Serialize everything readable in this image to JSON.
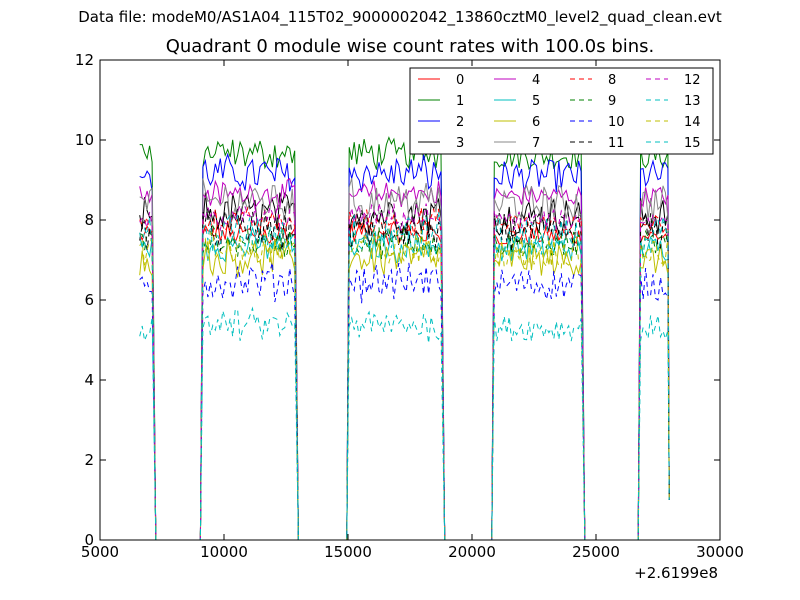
{
  "header": {
    "file_label": "Data file: modeM0/AS1A04_115T02_9000002042_13860cztM0_level2_quad_clean.evt"
  },
  "chart_data": {
    "type": "line",
    "title": "Quadrant 0 module wise count rates with 100.0s bins.",
    "xlabel": "",
    "ylabel": "",
    "x_offset_label": "+2.6199e8",
    "xlim": [
      5000,
      30000
    ],
    "ylim": [
      0,
      12
    ],
    "x_ticks": [
      5000,
      10000,
      15000,
      20000,
      25000,
      30000
    ],
    "x_tick_labels": [
      "5000",
      "10000",
      "15000",
      "20000",
      "25000",
      "30000"
    ],
    "y_ticks": [
      0,
      2,
      4,
      6,
      8,
      10,
      12
    ],
    "y_tick_labels": [
      "0",
      "2",
      "4",
      "6",
      "8",
      "10",
      "12"
    ],
    "legend_position": "top-right",
    "segments": [
      {
        "start": 6600,
        "end": 7100,
        "drop": 7250
      },
      {
        "start": 9150,
        "end": 12850,
        "drop": 13000
      },
      {
        "start": 15050,
        "end": 18750,
        "drop": 18900
      },
      {
        "start": 20900,
        "end": 24450,
        "drop": 24550
      },
      {
        "start": 26800,
        "end": 27900,
        "drop": 27950
      }
    ],
    "series": [
      {
        "name": "0",
        "color": "#ff0000",
        "dash": "solid",
        "mean": 7.6
      },
      {
        "name": "1",
        "color": "#008000",
        "dash": "solid",
        "mean": 9.6
      },
      {
        "name": "2",
        "color": "#0000ff",
        "dash": "solid",
        "mean": 9.1
      },
      {
        "name": "3",
        "color": "#000000",
        "dash": "solid",
        "mean": 8.1
      },
      {
        "name": "4",
        "color": "#bf00bf",
        "dash": "solid",
        "mean": 8.6
      },
      {
        "name": "5",
        "color": "#00bfbf",
        "dash": "solid",
        "mean": 7.3
      },
      {
        "name": "6",
        "color": "#bfbf00",
        "dash": "solid",
        "mean": 7.0
      },
      {
        "name": "7",
        "color": "#888888",
        "dash": "solid",
        "mean": 8.4
      },
      {
        "name": "8",
        "color": "#ff0000",
        "dash": "dashed",
        "mean": 7.9
      },
      {
        "name": "9",
        "color": "#008000",
        "dash": "dashed",
        "mean": 7.4
      },
      {
        "name": "10",
        "color": "#0000ff",
        "dash": "dashed",
        "mean": 6.4
      },
      {
        "name": "11",
        "color": "#000000",
        "dash": "dashed",
        "mean": 7.7
      },
      {
        "name": "12",
        "color": "#bf00bf",
        "dash": "dashed",
        "mean": 8.0
      },
      {
        "name": "13",
        "color": "#00bfbf",
        "dash": "dashed",
        "mean": 5.3
      },
      {
        "name": "14",
        "color": "#bfbf00",
        "dash": "dashed",
        "mean": 7.2
      },
      {
        "name": "15",
        "color": "#00bfbf",
        "dash": "dashed",
        "mean": 7.6
      }
    ]
  }
}
